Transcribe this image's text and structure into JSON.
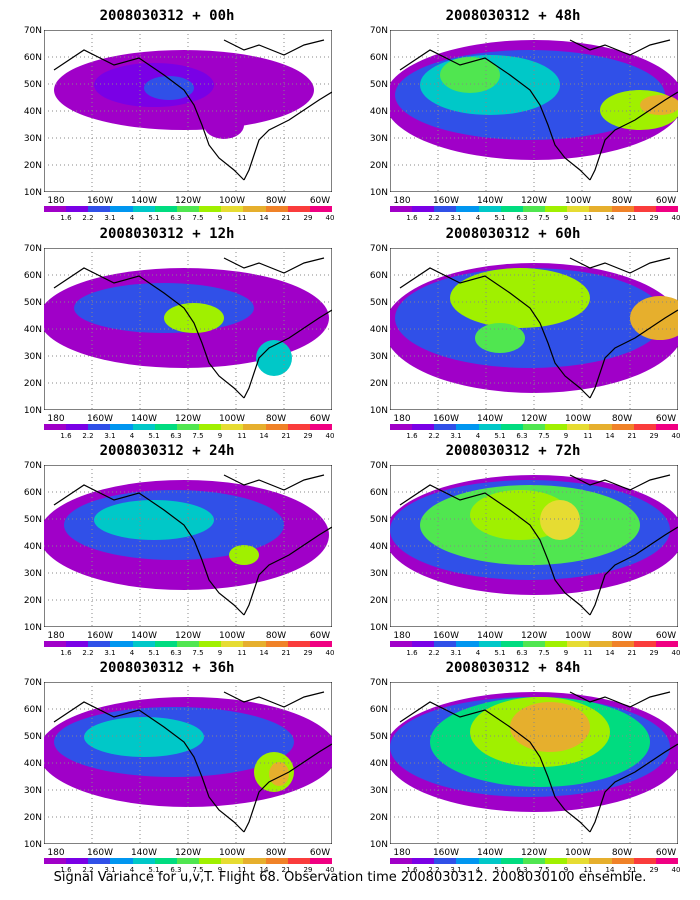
{
  "panels": [
    {
      "title": "2008030312 + 00h"
    },
    {
      "title": "2008030312 + 48h"
    },
    {
      "title": "2008030312 + 12h"
    },
    {
      "title": "2008030312 + 60h"
    },
    {
      "title": "2008030312 + 24h"
    },
    {
      "title": "2008030312 + 72h"
    },
    {
      "title": "2008030312 + 36h"
    },
    {
      "title": "2008030312 + 84h"
    }
  ],
  "y_labels": [
    "70N",
    "60N",
    "50N",
    "40N",
    "30N",
    "20N",
    "10N"
  ],
  "x_labels": [
    "180",
    "160W",
    "140W",
    "120W",
    "100W",
    "80W",
    "60W"
  ],
  "colorbar_labels": [
    "1.6",
    "2.2",
    "3.1",
    "4",
    "5.1",
    "6.3",
    "7.5",
    "9",
    "11",
    "14",
    "21",
    "29",
    "40"
  ],
  "colorbar_colors": [
    "#a000c8",
    "#7a00e6",
    "#3050e8",
    "#0096f0",
    "#00c8c8",
    "#00dc80",
    "#50e650",
    "#a0f000",
    "#e6dc32",
    "#e6af2d",
    "#f08228",
    "#fa3c3c",
    "#f00082"
  ],
  "footer": "Signal Variance for u,v,T. Flight 68. Observation time 2008030312. 2008030100 ensemble."
}
